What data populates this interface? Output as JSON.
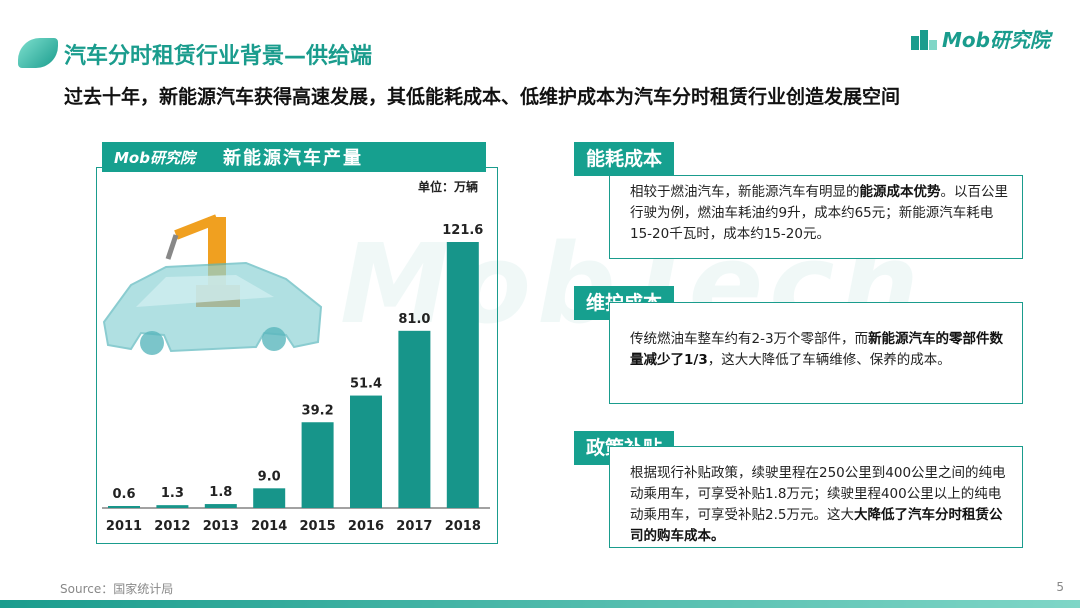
{
  "title": "汽车分时租赁行业背景—供给端",
  "subtitle": "过去十年，新能源汽车获得高速发展，其低能耗成本、低维护成本为汽车分时租赁行业创造发展空间",
  "logo": "Mob研究院",
  "watermark": "MobTech",
  "chart_header": {
    "logo": "Mob研究院",
    "title": "新能源汽车产量"
  },
  "chart_data": {
    "type": "bar",
    "title": "新能源汽车产量",
    "unit": "单位：万辆",
    "categories": [
      "2011",
      "2012",
      "2013",
      "2014",
      "2015",
      "2016",
      "2017",
      "2018"
    ],
    "values": [
      0.6,
      1.3,
      1.8,
      9.0,
      39.2,
      51.4,
      81.0,
      121.6
    ],
    "value_labels": [
      "0.6",
      "1.3",
      "1.8",
      "9.0",
      "39.2",
      "51.4",
      "81.0",
      "121.6"
    ],
    "bar_color": "#17958a"
  },
  "sections": [
    {
      "label": "能耗成本",
      "text_pre": "相较于燃油汽车，新能源汽车有明显的",
      "text_bold": "能源成本优势",
      "text_post": "。以百公里行驶为例，燃油车耗油约9升，成本约65元；新能源汽车耗电15-20千瓦时，成本约15-20元。"
    },
    {
      "label": "维护成本",
      "text_pre": "传统燃油车整车约有2-3万个零部件，而",
      "text_bold": "新能源汽车的零部件数量减少了1/3",
      "text_post": "，这大大降低了车辆维修、保养的成本。"
    },
    {
      "label": "政策补贴",
      "text_pre": "根据现行补贴政策，续驶里程在250公里到400公里之间的纯电动乘用车，可享受补贴1.8万元；续驶里程400公里以上的纯电动乘用车，可享受补贴2.5万元。这大",
      "text_bold": "大降低了汽车分时租赁公司的购车成本。",
      "text_post": ""
    }
  ],
  "source": "Source：国家统计局",
  "page_number": "5",
  "colors": {
    "accent": "#1a9c8d",
    "tab": "#16a08f"
  }
}
